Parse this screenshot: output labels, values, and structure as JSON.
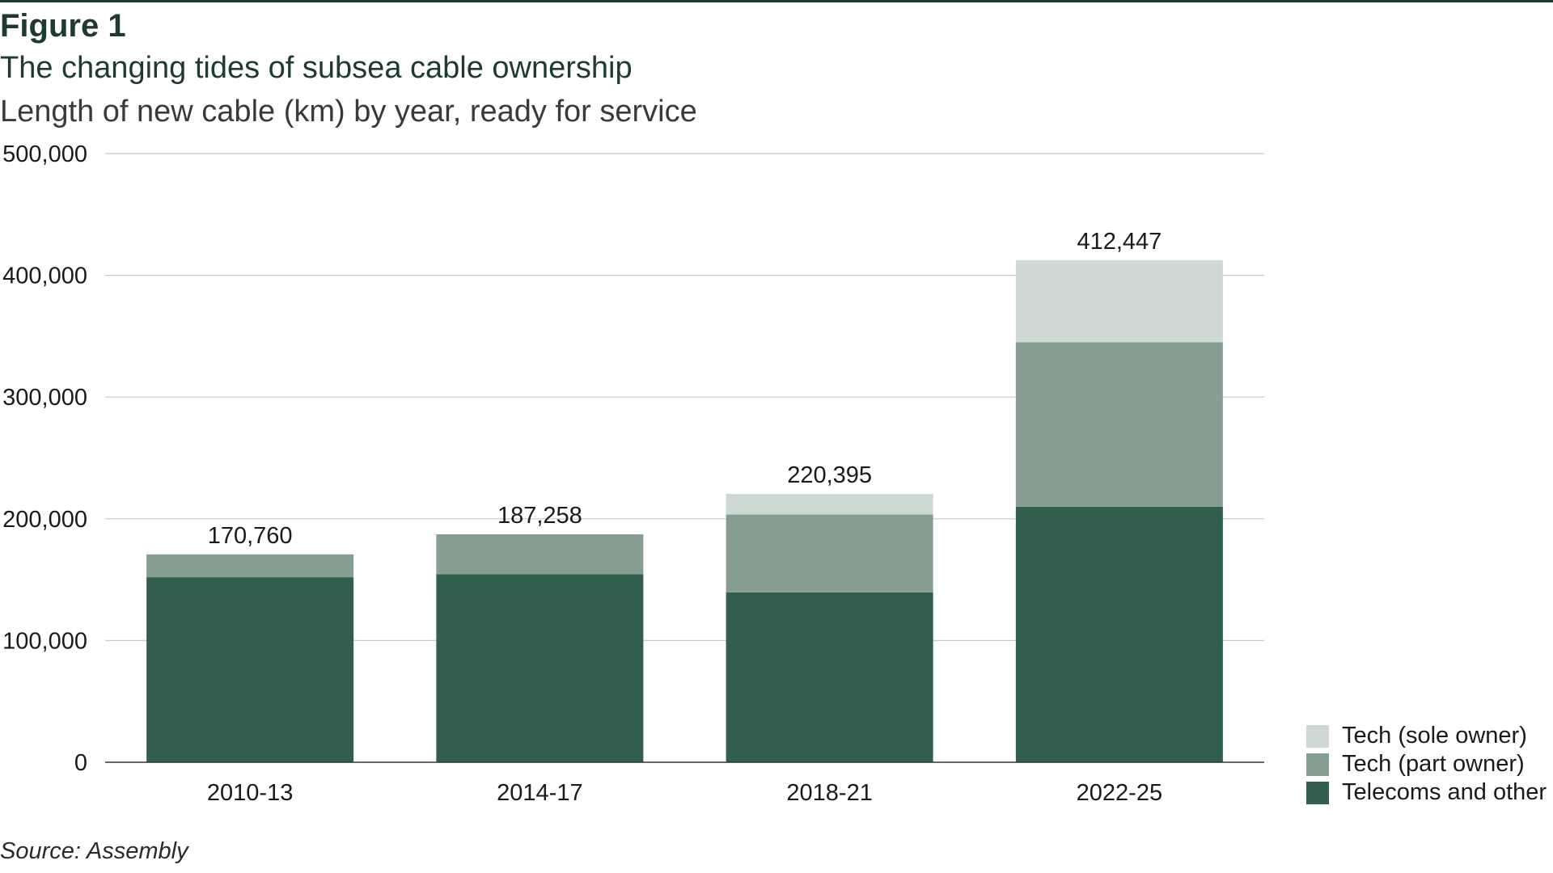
{
  "figure_label": "Figure 1",
  "source": "Source: Assembly",
  "colors": {
    "telecoms": "#325f4d",
    "tech_part": "#869e92",
    "tech_sole": "#cfd9d4",
    "gridline": "#c8c8c8",
    "axis": "#333333",
    "header": "#1f3a2e"
  },
  "chart_data": {
    "type": "bar",
    "stacked": true,
    "title": "The changing tides of subsea cable ownership",
    "subtitle": "Length of new cable (km) by year, ready for service",
    "xlabel": "",
    "ylabel": "",
    "ylim": [
      0,
      500000
    ],
    "yticks": [
      0,
      100000,
      200000,
      300000,
      400000,
      500000
    ],
    "ytick_labels": [
      "0",
      "100,000",
      "200,000",
      "300,000",
      "400,000",
      "500,000"
    ],
    "grid": true,
    "legend_position": "bottom-right",
    "categories": [
      "2010-13",
      "2014-17",
      "2018-21",
      "2022-25"
    ],
    "series": [
      {
        "name": "Telecoms and other",
        "values": [
          152000,
          154500,
          139500,
          210000
        ]
      },
      {
        "name": "Tech (part owner)",
        "values": [
          18760,
          32758,
          64000,
          135000
        ]
      },
      {
        "name": "Tech (sole owner)",
        "values": [
          0,
          0,
          16895,
          67447
        ]
      }
    ],
    "totals": [
      170760,
      187258,
      220395,
      412447
    ],
    "total_labels": [
      "170,760",
      "187,258",
      "220,395",
      "412,447"
    ]
  },
  "legend": {
    "items": [
      {
        "label": "Tech (sole owner)",
        "color": "#cfd9d4"
      },
      {
        "label": "Tech (part owner)",
        "color": "#869e92"
      },
      {
        "label": "Telecoms and other",
        "color": "#325f4d"
      }
    ]
  }
}
